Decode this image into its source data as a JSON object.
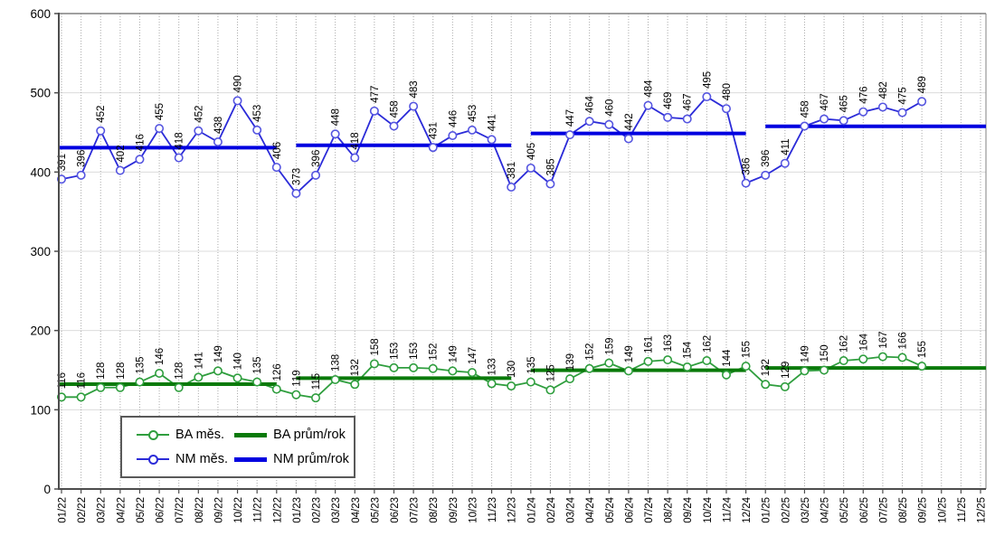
{
  "chart_data": {
    "type": "line",
    "title": "",
    "xlabel": "",
    "ylabel": "",
    "ylim": [
      0,
      600
    ],
    "yticks": [
      0,
      100,
      200,
      300,
      400,
      500,
      600
    ],
    "grid": "on",
    "x": [
      "01/22",
      "02/22",
      "03/22",
      "04/22",
      "05/22",
      "06/22",
      "07/22",
      "08/22",
      "09/22",
      "10/22",
      "11/22",
      "12/22",
      "01/23",
      "02/23",
      "03/23",
      "04/23",
      "05/23",
      "06/23",
      "07/23",
      "08/23",
      "09/23",
      "10/23",
      "11/23",
      "12/23",
      "01/24",
      "02/24",
      "03/24",
      "04/24",
      "05/24",
      "06/24",
      "07/24",
      "08/24",
      "09/24",
      "10/24",
      "11/24",
      "12/24",
      "01/25",
      "02/25",
      "03/25",
      "04/25",
      "05/25",
      "06/25",
      "07/25",
      "08/25",
      "09/25",
      "10/25",
      "11/25",
      "12/25"
    ],
    "series": [
      {
        "name": "BA měs.",
        "type": "line-markers",
        "color_key": "ba_line",
        "values": [
          116,
          116,
          128,
          128,
          135,
          146,
          128,
          141,
          149,
          140,
          135,
          126,
          119,
          115,
          138,
          132,
          158,
          153,
          153,
          152,
          149,
          147,
          133,
          130,
          135,
          125,
          139,
          152,
          159,
          149,
          161,
          163,
          154,
          162,
          144,
          155,
          132,
          129,
          149,
          150,
          162,
          164,
          167,
          166,
          155
        ]
      },
      {
        "name": "NM měs.",
        "type": "line-markers",
        "color_key": "nm_line",
        "values": [
          391,
          396,
          452,
          402,
          416,
          455,
          418,
          452,
          438,
          490,
          453,
          406,
          373,
          396,
          448,
          418,
          477,
          458,
          483,
          431,
          446,
          453,
          441,
          381,
          405,
          385,
          447,
          464,
          460,
          442,
          484,
          469,
          467,
          495,
          480,
          386,
          396,
          411,
          458,
          467,
          465,
          476,
          482,
          475,
          489
        ]
      },
      {
        "name": "BA prům/rok",
        "type": "yearly-average-line",
        "color_key": "ba_avg",
        "averages": [
          132.3,
          139.9,
          149.8,
          152.7
        ]
      },
      {
        "name": "NM prům/rok",
        "type": "yearly-average-line",
        "color_key": "nm_avg",
        "averages": [
          430.8,
          433.8,
          448.7,
          457.7
        ]
      }
    ],
    "years": [
      {
        "year": "2022",
        "start_index": 0,
        "end_index": 11
      },
      {
        "year": "2023",
        "start_index": 12,
        "end_index": 23
      },
      {
        "year": "2024",
        "start_index": 24,
        "end_index": 35
      },
      {
        "year": "2025",
        "start_index": 36,
        "end_index": 47
      }
    ],
    "legend": {
      "position": "inside-bottom-left",
      "items": [
        {
          "label": "BA měs.",
          "sample": "line-marker",
          "color_key": "ba_line"
        },
        {
          "label": "BA prům/rok",
          "sample": "thick-line",
          "color_key": "ba_avg"
        },
        {
          "label": "NM měs.",
          "sample": "line-marker",
          "color_key": "nm_line"
        },
        {
          "label": "NM prům/rok",
          "sample": "thick-line",
          "color_key": "nm_avg"
        }
      ]
    },
    "colors": {
      "ba_line": "#2F9E3E",
      "ba_marker": "#2F9E3E",
      "ba_avg": "#0A7A0A",
      "nm_line": "#2B2BD8",
      "nm_marker": "#5555E0",
      "nm_avg": "#0000E0",
      "grid_h": "#DCDCDC",
      "grid_v": "#AAAAAA",
      "axis": "#4D4D4D",
      "border": "#808080",
      "background": "#FFFFFF",
      "label_text": "#000000"
    }
  }
}
